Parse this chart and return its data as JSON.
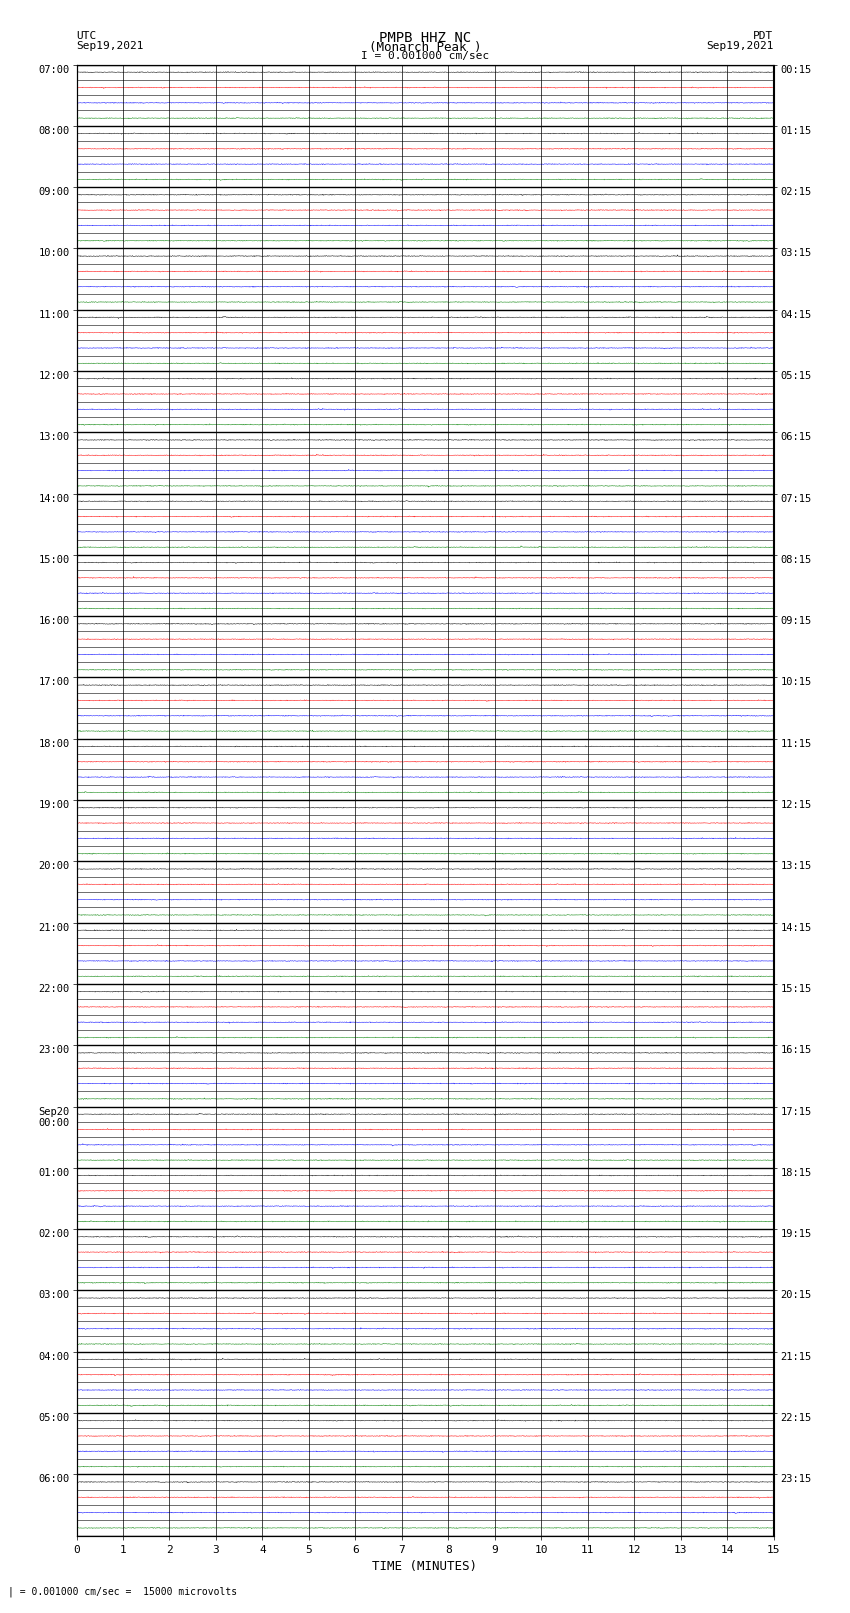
{
  "title_line1": "PMPB HHZ NC",
  "title_line2": "(Monarch Peak )",
  "scale_label": "I = 0.001000 cm/sec",
  "footer_label": "| = 0.001000 cm/sec =  15000 microvolts",
  "utc_label": "UTC",
  "utc_date": "Sep19,2021",
  "pdt_label": "PDT",
  "pdt_date": "Sep19,2021",
  "xlabel": "TIME (MINUTES)",
  "bg_color": "#ffffff",
  "trace_color": "#000000",
  "grid_color": "#000000",
  "noise_amplitude": 0.012,
  "event_color_red": "#ff0000",
  "event_color_blue": "#0000ff",
  "event_color_green": "#008000",
  "num_hours": 24,
  "rows_per_hour": 4,
  "minutes_per_trace": 15,
  "x_ticks": [
    0,
    1,
    2,
    3,
    4,
    5,
    6,
    7,
    8,
    9,
    10,
    11,
    12,
    13,
    14,
    15
  ],
  "left_hour_labels": [
    "07:00",
    "08:00",
    "09:00",
    "10:00",
    "11:00",
    "12:00",
    "13:00",
    "14:00",
    "15:00",
    "16:00",
    "17:00",
    "18:00",
    "19:00",
    "20:00",
    "21:00",
    "22:00",
    "23:00",
    "Sep20\n00:00",
    "01:00",
    "02:00",
    "03:00",
    "04:00",
    "05:00",
    "06:00"
  ],
  "right_hour_labels": [
    "00:15",
    "01:15",
    "02:15",
    "03:15",
    "04:15",
    "05:15",
    "06:15",
    "07:15",
    "08:15",
    "09:15",
    "10:15",
    "11:15",
    "12:15",
    "13:15",
    "14:15",
    "15:15",
    "16:15",
    "17:15",
    "18:15",
    "19:15",
    "20:15",
    "21:15",
    "22:15",
    "23:15"
  ],
  "row_colors": [
    "#000000",
    "#ff0000",
    "#0000ff",
    "#008000"
  ]
}
